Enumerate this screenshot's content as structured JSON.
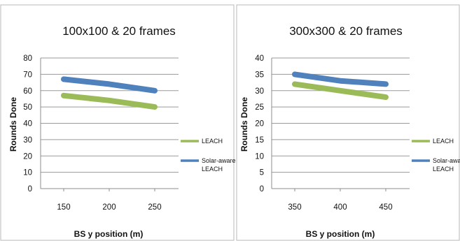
{
  "chart_data": [
    {
      "type": "line",
      "title": "100x100 & 20 frames",
      "xlabel": "BS y position (m)",
      "ylabel": "Rounds Done",
      "categories": [
        "150",
        "200",
        "250"
      ],
      "yticks": [
        "0",
        "10",
        "20",
        "30",
        "40",
        "50",
        "60",
        "70",
        "80"
      ],
      "ylim": [
        0,
        80
      ],
      "grid": true,
      "legend_position": "right",
      "series": [
        {
          "name": "LEACH",
          "legend_lines": [
            "LEACH"
          ],
          "color": "#9bbb59",
          "values": [
            57,
            54,
            50
          ]
        },
        {
          "name": "Solar-aware LEACH",
          "legend_lines": [
            "Solar-aware",
            "LEACH"
          ],
          "color": "#4f81bd",
          "values": [
            67,
            64,
            60
          ]
        }
      ]
    },
    {
      "type": "line",
      "title": "300x300 & 20 frames",
      "xlabel": "BS y position (m)",
      "ylabel": "Rounds Done",
      "categories": [
        "350",
        "400",
        "450"
      ],
      "yticks": [
        "0",
        "5",
        "10",
        "15",
        "20",
        "25",
        "30",
        "35",
        "40"
      ],
      "ylim": [
        0,
        40
      ],
      "grid": true,
      "legend_position": "right",
      "series": [
        {
          "name": "LEACH",
          "legend_lines": [
            "LEACH"
          ],
          "color": "#9bbb59",
          "values": [
            32,
            30,
            28
          ]
        },
        {
          "name": "Solar-aware LEACH",
          "legend_lines": [
            "Solar-awar",
            "LEACH"
          ],
          "color": "#4f81bd",
          "values": [
            35,
            33,
            32
          ]
        }
      ]
    }
  ]
}
